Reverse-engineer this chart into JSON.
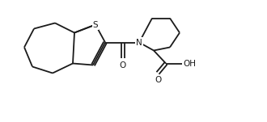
{
  "bg_color": "#ffffff",
  "bond_color": "#1a1a1a",
  "S_color": "#1a1a1a",
  "N_color": "#1a1a1a",
  "O_color": "#1a1a1a",
  "label_S": "S",
  "label_N": "N",
  "label_O": "O",
  "label_OH": "OH",
  "figsize": [
    3.3,
    1.51
  ],
  "dpi": 100,
  "lw": 1.3,
  "xlim": [
    0,
    33
  ],
  "ylim": [
    0,
    15
  ]
}
